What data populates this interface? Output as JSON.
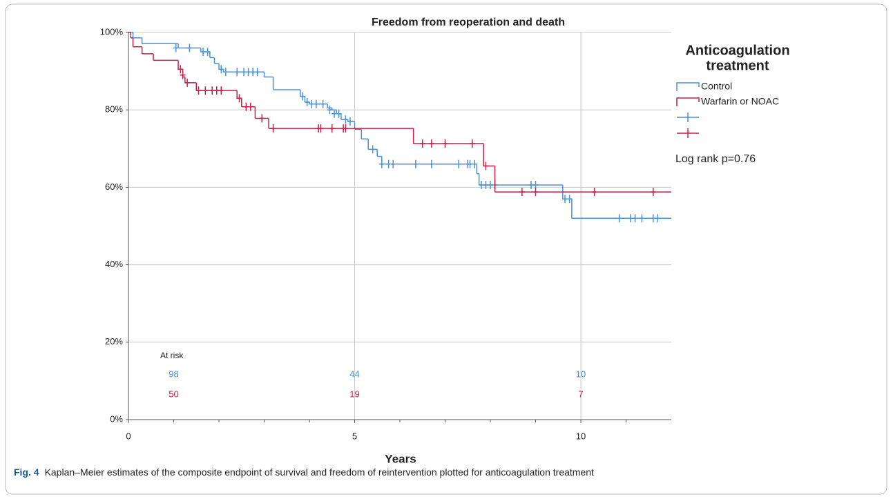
{
  "chart_data": {
    "type": "kaplan-meier",
    "title": "Freedom from reoperation and death",
    "x_label": "Years",
    "xlim": [
      0,
      12
    ],
    "xticks": [
      0,
      5,
      10
    ],
    "xminorticks": [
      1,
      2,
      3,
      4,
      6,
      7,
      8,
      9,
      11
    ],
    "ylim": [
      0,
      100
    ],
    "yticks": [
      {
        "value": 0,
        "label": "0%"
      },
      {
        "value": 20,
        "label": "20%"
      },
      {
        "value": 40,
        "label": "40%"
      },
      {
        "value": 60,
        "label": "60%"
      },
      {
        "value": 80,
        "label": "80%"
      },
      {
        "value": 100,
        "label": "100%"
      }
    ],
    "xgrid": [
      5,
      10
    ],
    "grid": true,
    "legend_title": [
      "Anticoagulation",
      "treatment"
    ],
    "legend_position": "right",
    "annotation": "Log rank p=0.76",
    "series": [
      {
        "name": "Control",
        "color": "#4a90d9",
        "x": [
          0,
          0.1,
          0.3,
          1.1,
          1.6,
          1.8,
          1.9,
          2.0,
          2.1,
          3.0,
          3.2,
          3.8,
          3.9,
          4.0,
          4.4,
          4.5,
          4.6,
          4.7,
          4.85,
          5.0,
          5.15,
          5.3,
          5.5,
          5.6,
          7.7,
          7.75,
          9.6,
          9.8
        ],
        "values": [
          100,
          98.6,
          97.1,
          96,
          95,
          93.5,
          92,
          90.5,
          89.8,
          88.5,
          85.2,
          83.5,
          82,
          81.5,
          80.5,
          80,
          79,
          77.5,
          77,
          75,
          72.5,
          69.8,
          68,
          66,
          63.5,
          60.6,
          57,
          52
        ],
        "censored_x": [
          1.05,
          1.35,
          1.65,
          1.75,
          2.05,
          2.15,
          2.4,
          2.55,
          2.65,
          2.75,
          2.85,
          3.85,
          3.95,
          4.05,
          4.15,
          4.3,
          4.45,
          4.55,
          4.65,
          4.8,
          4.9,
          5.4,
          5.6,
          5.75,
          5.85,
          6.35,
          6.7,
          7.3,
          7.5,
          7.55,
          7.65,
          7.8,
          7.9,
          8.0,
          8.1,
          8.9,
          9.0,
          9.65,
          9.75,
          10.85,
          11.1,
          11.2,
          11.35,
          11.6,
          11.7
        ],
        "censored_values": [
          96,
          96,
          95,
          95,
          90.5,
          89.8,
          89.8,
          89.8,
          89.8,
          89.8,
          89.8,
          83.5,
          82,
          81.5,
          81.5,
          81.5,
          80,
          79,
          79,
          77.5,
          77,
          69.8,
          66,
          66,
          66,
          66,
          66,
          66,
          66,
          66,
          66,
          60.6,
          60.6,
          60.6,
          60.6,
          60.6,
          60.6,
          57,
          57,
          52,
          52,
          52,
          52,
          52,
          52
        ],
        "at_risk": [
          98,
          44,
          10
        ]
      },
      {
        "name": "Warfarin or NOAC",
        "color": "#c81e45",
        "x": [
          0,
          0.05,
          0.1,
          0.3,
          0.55,
          1.1,
          1.2,
          1.25,
          1.5,
          2.4,
          2.5,
          2.8,
          3.1,
          6.3,
          7.85,
          8.1
        ],
        "values": [
          100,
          98.6,
          96.3,
          94.5,
          92.8,
          90.5,
          88.5,
          87,
          85,
          83,
          80.8,
          77.8,
          75.2,
          71.3,
          65.5,
          58.8
        ],
        "censored_x": [
          1.15,
          1.2,
          1.3,
          1.55,
          1.7,
          1.85,
          1.95,
          2.05,
          2.45,
          2.6,
          2.7,
          2.95,
          3.2,
          4.2,
          4.25,
          4.5,
          4.75,
          4.8,
          6.5,
          6.7,
          7.0,
          7.6,
          7.9,
          8.7,
          9.0,
          10.3,
          11.6
        ],
        "censored_values": [
          90.5,
          89,
          87,
          85,
          85,
          85,
          85,
          85,
          83,
          80.8,
          80.8,
          77.8,
          75.2,
          75.2,
          75.2,
          75.2,
          75.2,
          75.2,
          71.3,
          71.3,
          71.3,
          71.3,
          65.5,
          58.8,
          58.8,
          58.8,
          58.8
        ],
        "at_risk": [
          50,
          19,
          7
        ]
      }
    ],
    "at_risk_label": "At risk",
    "at_risk_x": [
      1,
      5,
      10
    ],
    "caption_label": "Fig. 4",
    "caption": "Kaplan–Meier estimates of the composite endpoint of survival and freedom of reintervention plotted for anticoagulation treatment"
  }
}
